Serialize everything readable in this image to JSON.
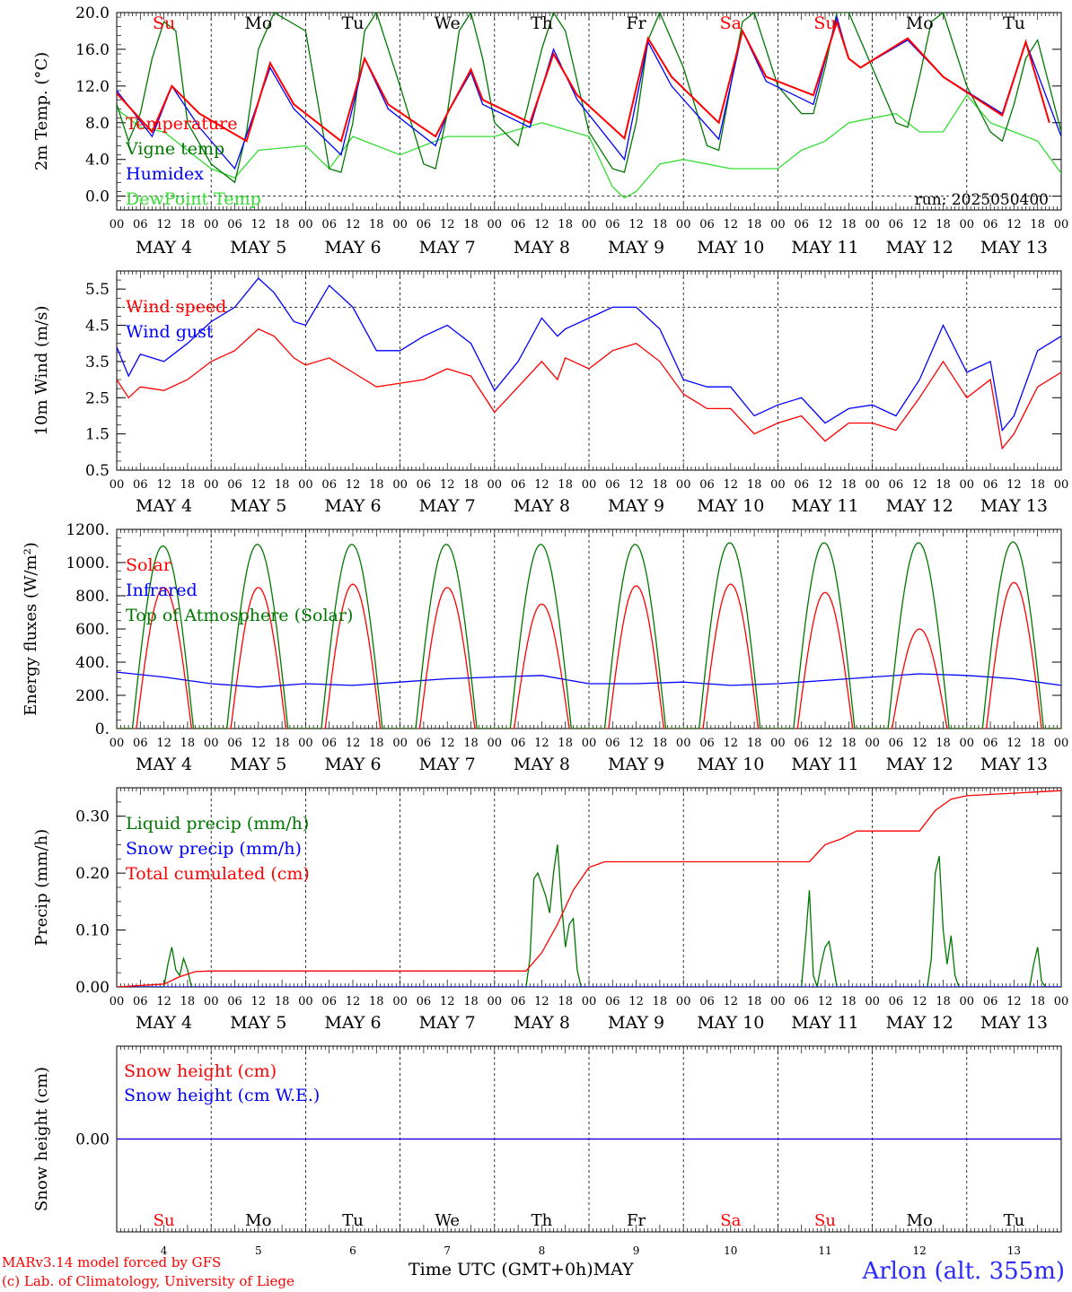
{
  "days": [
    {
      "abbr": "Su",
      "num": "4",
      "weekend": true
    },
    {
      "abbr": "Mo",
      "num": "5",
      "weekend": false
    },
    {
      "abbr": "Tu",
      "num": "6",
      "weekend": false
    },
    {
      "abbr": "We",
      "num": "7",
      "weekend": false
    },
    {
      "abbr": "Th",
      "num": "8",
      "weekend": false
    },
    {
      "abbr": "Fr",
      "num": "9",
      "weekend": false
    },
    {
      "abbr": "Sa",
      "num": "10",
      "weekend": true
    },
    {
      "abbr": "Su",
      "num": "11",
      "weekend": true
    },
    {
      "abbr": "Mo",
      "num": "12",
      "weekend": false
    },
    {
      "abbr": "Tu",
      "num": "13",
      "weekend": false
    }
  ],
  "month": "MAY",
  "hour_labels": [
    "00",
    "06",
    "12",
    "18"
  ],
  "hour_end_label": "00",
  "footer": {
    "model": "MARv3.14 model forced by GFS",
    "copyright": "(c) Lab. of Climatology, University of Liege",
    "location": "Arlon (alt. 355m)",
    "xaxis_title": "Time UTC (GMT+0h)",
    "xaxis_month": "MAY"
  },
  "colors": {
    "red": "#ff0000",
    "green": "#007700",
    "blue": "#0000ff",
    "lightgreen": "#33dd33",
    "weekend": "#ff0000"
  },
  "chart_data": [
    {
      "type": "line",
      "ylabel": "2m Temp. (°C)",
      "ylim": [
        -1.5,
        20
      ],
      "yticks": [
        0.0,
        4.0,
        8.0,
        12.0,
        16.0,
        20.0
      ],
      "ytick_labels": [
        "0.0",
        "4.0",
        "8.0",
        "12.0",
        "16.0",
        "20.0"
      ],
      "hline": 0.0,
      "day_labels_on_top": true,
      "annotation": "run: 2025050400",
      "series": [
        {
          "name": "Temperature",
          "color": "red",
          "times_h": [
            0,
            9,
            14,
            21,
            33,
            39,
            45,
            57,
            63,
            69,
            81,
            84,
            90,
            93,
            105,
            111,
            117,
            129,
            135,
            141,
            153,
            159,
            165,
            177,
            183,
            186,
            189,
            201,
            210,
            225,
            231,
            237
          ],
          "values": [
            11.2,
            7.0,
            12.0,
            9.0,
            6.0,
            14.5,
            10.0,
            6.0,
            15.0,
            10.0,
            6.5,
            9.0,
            13.8,
            10.5,
            8.0,
            15.5,
            11.0,
            6.3,
            17.2,
            13.0,
            8.0,
            18.0,
            13.0,
            11.0,
            19.0,
            15.0,
            14.0,
            17.2,
            13.0,
            8.8,
            16.8,
            8.0
          ]
        },
        {
          "name": "Vigne temp",
          "color": "green",
          "times_h": [
            0,
            3,
            6,
            9,
            12,
            15,
            18,
            24,
            30,
            33,
            36,
            40,
            48,
            54,
            57,
            60,
            63,
            66,
            72,
            78,
            81,
            84,
            87,
            90,
            93,
            96,
            102,
            108,
            111,
            114,
            120,
            126,
            129,
            132,
            135,
            138,
            144,
            150,
            153,
            156,
            159,
            162,
            168,
            174,
            177,
            180,
            183,
            186,
            192,
            198,
            201,
            204,
            207,
            210,
            216,
            222,
            225,
            228,
            231,
            234,
            237,
            240
          ],
          "values": [
            10.0,
            6.0,
            9.0,
            15.0,
            19.0,
            18.0,
            8.0,
            3.5,
            1.5,
            7.0,
            16.0,
            20.0,
            18.0,
            3.0,
            2.6,
            8.0,
            18.0,
            20.0,
            12.0,
            3.5,
            3.0,
            9.0,
            18.0,
            20.0,
            15.0,
            8.0,
            5.5,
            16.0,
            20.0,
            18.0,
            7.0,
            3.0,
            2.6,
            8.0,
            17.0,
            20.0,
            14.0,
            5.5,
            5.0,
            12.0,
            19.0,
            20.0,
            12.0,
            9.0,
            9.0,
            14.0,
            20.0,
            20.0,
            14.0,
            8.0,
            7.5,
            13.0,
            19.0,
            20.0,
            12.0,
            7.0,
            6.0,
            10.0,
            15.0,
            17.0,
            12.0,
            7.0
          ]
        },
        {
          "name": "Humidex",
          "color": "blue",
          "times_h": [
            0,
            9,
            14,
            21,
            30,
            39,
            45,
            57,
            63,
            69,
            81,
            84,
            90,
            93,
            105,
            111,
            117,
            129,
            135,
            141,
            153,
            159,
            165,
            177,
            183,
            186,
            189,
            201,
            210,
            225,
            231,
            240
          ],
          "values": [
            11.5,
            6.5,
            12.0,
            7.5,
            3.0,
            14.0,
            9.5,
            4.5,
            15.0,
            9.5,
            5.5,
            9.0,
            13.5,
            10.0,
            7.5,
            16.0,
            10.5,
            4.0,
            16.8,
            12.0,
            6.2,
            18.0,
            12.5,
            10.0,
            19.5,
            15.0,
            14.0,
            17.0,
            13.0,
            9.0,
            16.8,
            6.5
          ]
        },
        {
          "name": "DewPoint Temp",
          "color": "lightgreen",
          "times_h": [
            0,
            6,
            12,
            18,
            24,
            30,
            36,
            48,
            54,
            60,
            66,
            72,
            84,
            96,
            108,
            120,
            126,
            129,
            132,
            138,
            144,
            150,
            156,
            162,
            168,
            174,
            180,
            186,
            192,
            198,
            204,
            210,
            216,
            222,
            228,
            234,
            240
          ],
          "values": [
            9.5,
            7.5,
            7.0,
            5.0,
            3.0,
            2.0,
            5.0,
            5.5,
            3.0,
            6.5,
            5.5,
            4.5,
            6.5,
            6.5,
            8.0,
            6.5,
            1.0,
            -0.2,
            0.5,
            3.5,
            4.0,
            3.5,
            3.0,
            3.0,
            3.0,
            5.0,
            6.0,
            8.0,
            8.5,
            9.0,
            7.0,
            7.0,
            11.0,
            8.0,
            7.0,
            6.0,
            2.5
          ]
        }
      ]
    },
    {
      "type": "line",
      "ylabel": "10m Wind (m/s)",
      "ylim": [
        0.5,
        6.0
      ],
      "yticks": [
        0.5,
        1.5,
        2.5,
        3.5,
        4.5,
        5.5
      ],
      "ytick_labels": [
        "0.5",
        "1.5",
        "2.5",
        "3.5",
        "4.5",
        "5.5"
      ],
      "hline": 5.0,
      "series": [
        {
          "name": "Wind speed",
          "color": "red",
          "times_h": [
            0,
            3,
            6,
            12,
            18,
            24,
            30,
            36,
            40,
            45,
            48,
            54,
            60,
            66,
            72,
            78,
            84,
            90,
            96,
            102,
            108,
            112,
            114,
            120,
            126,
            132,
            138,
            144,
            150,
            156,
            162,
            168,
            174,
            180,
            186,
            192,
            198,
            204,
            210,
            216,
            222,
            225,
            228,
            234,
            240
          ],
          "values": [
            3.0,
            2.5,
            2.8,
            2.7,
            3.0,
            3.5,
            3.8,
            4.4,
            4.2,
            3.6,
            3.4,
            3.6,
            3.2,
            2.8,
            2.9,
            3.0,
            3.3,
            3.1,
            2.1,
            2.8,
            3.5,
            3.0,
            3.6,
            3.3,
            3.8,
            4.0,
            3.5,
            2.6,
            2.2,
            2.2,
            1.5,
            1.8,
            2.0,
            1.3,
            1.8,
            1.8,
            1.6,
            2.5,
            3.5,
            2.5,
            3.0,
            1.1,
            1.5,
            2.8,
            3.2
          ]
        },
        {
          "name": "Wind gust",
          "color": "blue",
          "times_h": [
            0,
            3,
            6,
            12,
            18,
            24,
            30,
            36,
            40,
            45,
            48,
            54,
            60,
            66,
            72,
            78,
            84,
            90,
            96,
            102,
            108,
            112,
            114,
            120,
            126,
            132,
            138,
            144,
            150,
            156,
            162,
            168,
            174,
            180,
            186,
            192,
            198,
            204,
            210,
            216,
            222,
            225,
            228,
            234,
            240
          ],
          "values": [
            3.9,
            3.1,
            3.7,
            3.5,
            4.0,
            4.6,
            5.0,
            5.8,
            5.4,
            4.6,
            4.5,
            5.6,
            5.0,
            3.8,
            3.8,
            4.2,
            4.5,
            4.0,
            2.7,
            3.5,
            4.7,
            4.2,
            4.4,
            4.7,
            5.0,
            5.0,
            4.4,
            3.0,
            2.8,
            2.8,
            2.0,
            2.3,
            2.5,
            1.8,
            2.2,
            2.3,
            2.0,
            3.0,
            4.5,
            3.2,
            3.5,
            1.6,
            2.0,
            3.8,
            4.2
          ]
        }
      ]
    },
    {
      "type": "line",
      "ylabel": "Energy fluxes (W/m²)",
      "ylim": [
        0,
        1200
      ],
      "yticks": [
        0,
        200,
        400,
        600,
        800,
        1000,
        1200
      ],
      "ytick_labels": [
        "0.",
        "200.",
        "400.",
        "600.",
        "800.",
        "1000.",
        "1200."
      ],
      "series": [
        {
          "name": "Solar",
          "color": "red",
          "daily_peaks": [
            850,
            850,
            870,
            850,
            750,
            860,
            870,
            820,
            600,
            880
          ]
        },
        {
          "name": "Infrared",
          "color": "blue",
          "times_h": [
            0,
            12,
            24,
            36,
            48,
            60,
            72,
            84,
            96,
            108,
            120,
            132,
            144,
            156,
            168,
            180,
            192,
            204,
            216,
            228,
            240
          ],
          "values": [
            340,
            310,
            270,
            250,
            270,
            260,
            280,
            300,
            310,
            320,
            270,
            270,
            280,
            260,
            270,
            290,
            310,
            330,
            320,
            300,
            260
          ]
        },
        {
          "name": "Top of Atmosphere (Solar)",
          "color": "green",
          "daily_peaks": [
            1100,
            1110,
            1110,
            1110,
            1110,
            1110,
            1120,
            1120,
            1120,
            1125
          ]
        }
      ]
    },
    {
      "type": "line",
      "ylabel": "Precip (mm/h)",
      "ylim": [
        0,
        0.35
      ],
      "yticks": [
        0.0,
        0.1,
        0.2,
        0.3
      ],
      "ytick_labels": [
        "0.00",
        "0.10",
        "0.20",
        "0.30"
      ],
      "series": [
        {
          "name": "Liquid precip (mm/h)",
          "color": "green",
          "times_h": [
            0,
            12,
            13,
            14,
            15,
            16,
            17,
            18,
            19,
            20,
            24,
            104,
            105,
            106,
            107,
            108,
            109,
            110,
            111,
            112,
            113,
            114,
            115,
            116,
            117,
            118,
            119,
            120,
            174,
            175,
            176,
            177,
            178,
            179,
            180,
            181,
            182,
            183,
            206,
            207,
            208,
            209,
            210,
            211,
            212,
            213,
            214,
            215,
            232,
            233,
            234,
            235,
            236,
            240
          ],
          "values": [
            0,
            0,
            0.04,
            0.07,
            0.03,
            0.02,
            0.05,
            0.03,
            0.0,
            0,
            0,
            0,
            0.05,
            0.19,
            0.2,
            0.18,
            0.16,
            0.13,
            0.2,
            0.25,
            0.15,
            0.07,
            0.11,
            0.12,
            0.03,
            0.0,
            0,
            0,
            0,
            0.08,
            0.17,
            0.02,
            0.0,
            0.04,
            0.07,
            0.08,
            0.04,
            0,
            0,
            0.05,
            0.2,
            0.23,
            0.1,
            0.04,
            0.09,
            0.02,
            0,
            0,
            0,
            0.04,
            0.07,
            0.01,
            0,
            0
          ]
        },
        {
          "name": "Snow precip (mm/h)",
          "color": "blue",
          "times_h": [
            0,
            240
          ],
          "values": [
            0,
            0
          ]
        },
        {
          "name": "Total cumulated (cm)",
          "color": "red",
          "times_h": [
            0,
            12,
            16,
            20,
            24,
            104,
            108,
            112,
            116,
            120,
            124,
            128,
            132,
            176,
            180,
            184,
            188,
            204,
            208,
            212,
            216,
            240
          ],
          "values": [
            0,
            0.005,
            0.018,
            0.027,
            0.028,
            0.028,
            0.06,
            0.11,
            0.17,
            0.21,
            0.22,
            0.22,
            0.22,
            0.22,
            0.25,
            0.26,
            0.274,
            0.274,
            0.31,
            0.33,
            0.336,
            0.345
          ]
        }
      ]
    },
    {
      "type": "line",
      "ylabel": "Snow height (cm)",
      "ylim": [
        -1,
        1
      ],
      "yticks": [
        0
      ],
      "ytick_labels": [
        "0.00"
      ],
      "day_labels_in_panel": true,
      "series": [
        {
          "name": "Snow height (cm)",
          "color": "red",
          "times_h": [
            0,
            240
          ],
          "values": [
            0,
            0
          ]
        },
        {
          "name": "Snow height (cm W.E.)",
          "color": "blue",
          "times_h": [
            0,
            240
          ],
          "values": [
            0,
            0
          ]
        }
      ]
    }
  ]
}
